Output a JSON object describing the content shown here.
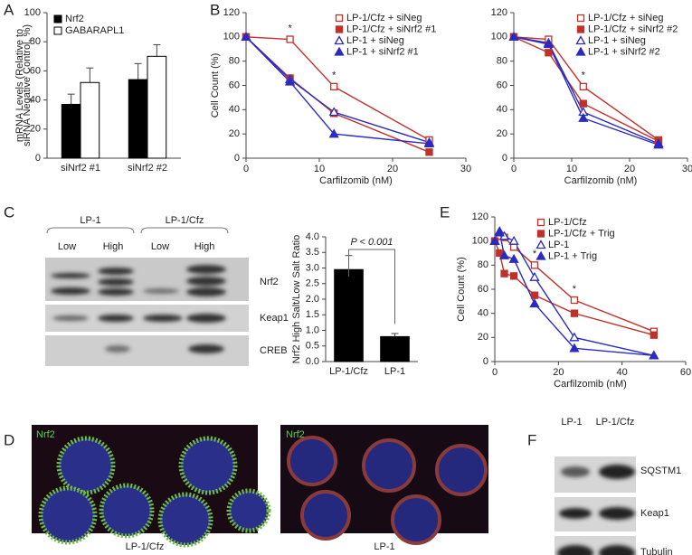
{
  "panel_letters": [
    "A",
    "B",
    "C",
    "D",
    "E",
    "F"
  ],
  "chart_data": [
    {
      "type": "bar",
      "categories": [
        "siNrf2 #1",
        "siNrf2 #2"
      ],
      "series": [
        {
          "name": "Nrf2",
          "color": "#000000",
          "values": [
            37,
            54
          ],
          "errors": [
            7,
            11
          ]
        },
        {
          "name": "GABARAPL1",
          "color": "#ffffff",
          "values": [
            52,
            70
          ],
          "errors": [
            10,
            8
          ]
        }
      ],
      "y_label": [
        "mRNA Levels (Relative to",
        "siRNA Negative Control, %)"
      ],
      "ylim": [
        0,
        100
      ],
      "yticks": [
        0,
        20,
        40,
        60,
        80,
        100
      ],
      "legend": "upper left"
    },
    {
      "type": "line",
      "x": [
        0,
        6,
        12,
        25
      ],
      "x_label": "Carfilzomib (nM)",
      "y_label": "Cell Count (%)",
      "series": [
        {
          "name": "LP-1/Cfz + siNeg",
          "color": "#c0312b",
          "marker": "square",
          "filled": false,
          "values": [
            100,
            98,
            59,
            15
          ]
        },
        {
          "name": "LP-1/Cfz + siNrf2 #1",
          "color": "#c0312b",
          "marker": "square",
          "filled": true,
          "values": [
            100,
            66,
            37,
            5
          ]
        },
        {
          "name": "LP-1 + siNeg",
          "color": "#2b2bc0",
          "marker": "triangle",
          "filled": false,
          "values": [
            100,
            65,
            38,
            13
          ]
        },
        {
          "name": "LP-1 + siNrf2 #1",
          "color": "#2b2bc0",
          "marker": "triangle",
          "filled": true,
          "values": [
            100,
            63,
            20,
            12
          ]
        }
      ],
      "annotations": [
        {
          "text": "*",
          "x": 6
        },
        {
          "text": "*",
          "x": 12
        }
      ],
      "xlim": [
        0,
        30
      ],
      "xticks": [
        0,
        10,
        20,
        30
      ],
      "ylim": [
        0,
        120
      ],
      "yticks": [
        0,
        20,
        40,
        60,
        80,
        100,
        120
      ],
      "legend": "upper right"
    },
    {
      "type": "line",
      "x": [
        0,
        6,
        12,
        25
      ],
      "x_label": "Carfilzomib (nM)",
      "series": [
        {
          "name": "LP-1/Cfz + siNeg",
          "color": "#c0312b",
          "marker": "square",
          "filled": false,
          "values": [
            100,
            98,
            59,
            15
          ]
        },
        {
          "name": "LP-1/Cfz + siNrf2 #2",
          "color": "#c0312b",
          "marker": "square",
          "filled": true,
          "values": [
            100,
            87,
            45,
            14
          ]
        },
        {
          "name": "LP-1 + siNeg",
          "color": "#2b2bc0",
          "marker": "triangle",
          "filled": false,
          "values": [
            100,
            95,
            38,
            12
          ]
        },
        {
          "name": "LP-1 + siNrf2 #2",
          "color": "#2b2bc0",
          "marker": "triangle",
          "filled": true,
          "values": [
            100,
            94,
            33,
            11
          ]
        }
      ],
      "annotations": [
        {
          "text": "*",
          "x": 12
        }
      ],
      "xlim": [
        0,
        30
      ],
      "xticks": [
        0,
        10,
        20,
        30
      ],
      "ylim": [
        0,
        120
      ],
      "yticks": [
        0,
        20,
        40,
        60,
        80,
        100,
        120
      ],
      "legend": "upper right"
    },
    {
      "type": "bar",
      "categories": [
        "LP-1/Cfz",
        "LP-1"
      ],
      "series": [
        {
          "color": "#000000",
          "values": [
            2.95,
            0.8
          ],
          "errors": [
            0.45,
            0.1
          ]
        }
      ],
      "y_label": [
        "Nrf2 High Salt/Low Salt Ratio"
      ],
      "annotation": "P < 0.001",
      "ylim": [
        0,
        4
      ],
      "yticks": [
        {
          "value": 0,
          "label": "0.0"
        },
        {
          "value": 0.5,
          "label": "0.5"
        },
        {
          "value": 1,
          "label": "1.0"
        },
        {
          "value": 1.5,
          "label": "1.5"
        },
        {
          "value": 2,
          "label": "2.0"
        },
        {
          "value": 2.5,
          "label": "2.5"
        },
        {
          "value": 3,
          "label": "3.0"
        },
        {
          "value": 3.5,
          "label": "3.5"
        },
        {
          "value": 4,
          "label": "4.0"
        }
      ]
    },
    {
      "type": "line",
      "x": [
        0,
        1.5,
        3,
        6,
        12.5,
        25,
        50
      ],
      "x_label": "Carfilzomib (nM)",
      "y_label": "Cell Count (%)",
      "series": [
        {
          "name": "LP-1/Cfz",
          "color": "#c0312b",
          "marker": "square",
          "filled": false,
          "values": [
            100,
            104,
            103,
            95,
            80,
            51,
            25
          ]
        },
        {
          "name": "LP-1/Cfz + Trig",
          "color": "#c0312b",
          "marker": "square",
          "filled": true,
          "values": [
            100,
            90,
            73,
            71,
            55,
            40,
            22
          ]
        },
        {
          "name": "LP-1",
          "color": "#2b2bc0",
          "marker": "triangle",
          "filled": false,
          "values": [
            100,
            108,
            104,
            100,
            70,
            20,
            5
          ]
        },
        {
          "name": "LP-1 + Trig",
          "color": "#2b2bc0",
          "marker": "triangle",
          "filled": true,
          "values": [
            100,
            107,
            88,
            85,
            48,
            11,
            5
          ]
        }
      ],
      "annotations": [
        {
          "text": "*",
          "x": 12.5
        },
        {
          "text": "*",
          "x": 25
        }
      ],
      "xlim": [
        0,
        60
      ],
      "xticks": [
        0,
        20,
        40,
        60
      ],
      "ylim": [
        0,
        120
      ],
      "yticks": [
        0,
        20,
        40,
        60,
        80,
        100,
        120
      ],
      "legend": "upper right"
    }
  ],
  "blot_c": {
    "groups": [
      "LP-1",
      "LP-1/Cfz"
    ],
    "lanes": [
      "Low",
      "High",
      "Low",
      "High"
    ],
    "rows": [
      "Nrf2",
      "Keap1",
      "CREB"
    ]
  },
  "images_d": {
    "stain": [
      "Nrf2",
      "Nrf2"
    ],
    "captions": [
      "LP-1/Cfz",
      "LP-1"
    ]
  },
  "blot_f": {
    "lanes": [
      "LP-1",
      "LP-1/Cfz"
    ],
    "rows": [
      "SQSTM1",
      "Keap1",
      "Tubulin"
    ]
  }
}
